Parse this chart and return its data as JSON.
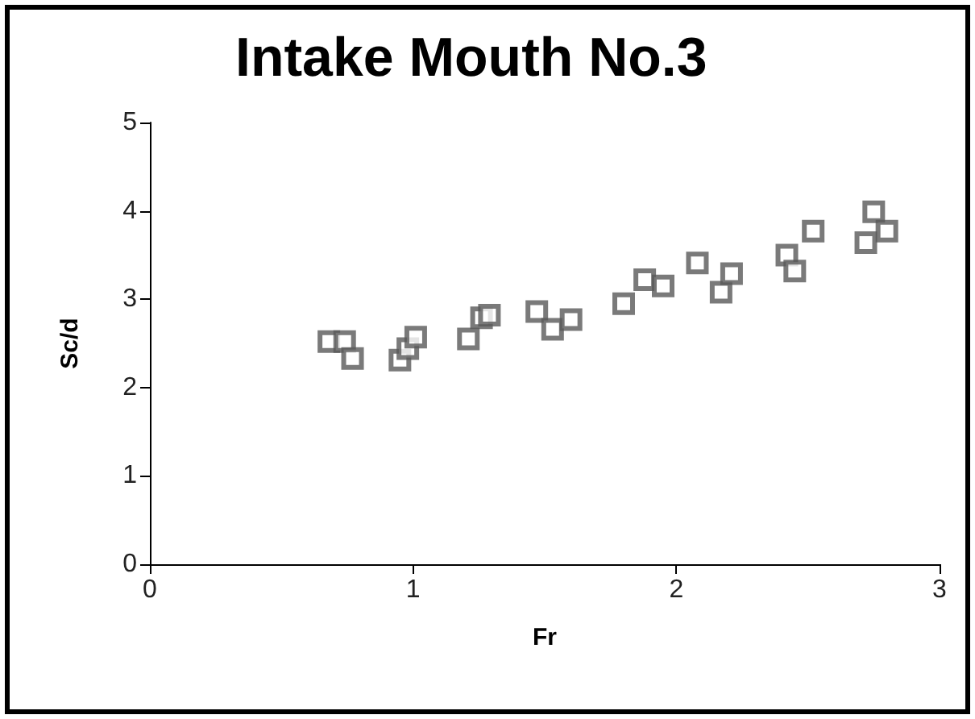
{
  "chart_data": {
    "type": "scatter",
    "title": "Intake Mouth No.3",
    "xlabel": "Fr",
    "ylabel": "Sc/d",
    "marker": "square",
    "grid": false,
    "xlim": [
      0,
      3
    ],
    "xticks": [
      0,
      1,
      2,
      3
    ],
    "ylim": [
      0,
      5
    ],
    "yticks": [
      0,
      1,
      2,
      3,
      4,
      5
    ],
    "series": [
      {
        "color": "#595959",
        "x": [
          0.68,
          0.74,
          0.77,
          0.95,
          0.98,
          1.01,
          1.21,
          1.26,
          1.29,
          1.47,
          1.53,
          1.6,
          1.8,
          1.88,
          1.95,
          2.08,
          2.17,
          2.21,
          2.42,
          2.45,
          2.52,
          2.72,
          2.75,
          2.8
        ],
        "values": [
          2.52,
          2.52,
          2.33,
          2.31,
          2.44,
          2.57,
          2.55,
          2.79,
          2.82,
          2.86,
          2.66,
          2.77,
          2.95,
          3.22,
          3.15,
          3.41,
          3.08,
          3.29,
          3.5,
          3.32,
          3.77,
          3.64,
          3.99,
          3.77
        ]
      }
    ]
  }
}
